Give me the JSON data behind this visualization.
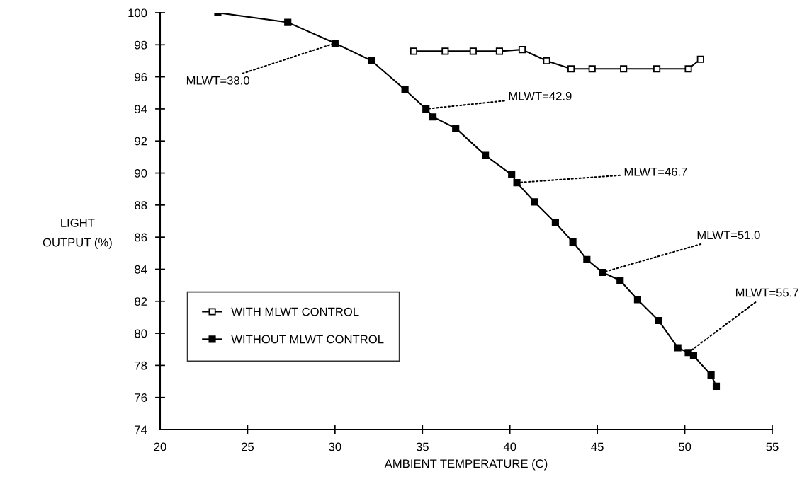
{
  "chart_data": {
    "type": "line",
    "xlabel": "AMBIENT TEMPERATURE (C)",
    "ylabel": "LIGHT\nOUTPUT (%)",
    "xlim": [
      20,
      55
    ],
    "xticks": [
      20,
      25,
      30,
      35,
      40,
      45,
      50,
      55
    ],
    "ylim": [
      74,
      100
    ],
    "yticks": [
      74,
      76,
      78,
      80,
      82,
      84,
      86,
      88,
      90,
      92,
      94,
      96,
      98,
      100
    ],
    "grid": false,
    "legend": "lower left",
    "marker": "square",
    "line_style": "solid",
    "series": [
      {
        "name": "WITH MLWT CONTROL",
        "color": "#000000",
        "x": [
          34.5,
          36.3,
          37.9,
          39.4,
          40.7,
          42.1,
          43.5,
          44.7,
          46.5,
          48.4,
          50.2,
          50.9
        ],
        "values": [
          97.6,
          97.6,
          97.6,
          97.6,
          97.7,
          97.0,
          96.5,
          96.5,
          96.5,
          96.5,
          96.5,
          97.1
        ]
      },
      {
        "name": "WITHOUT MLWT CONTROL",
        "color": "#000000",
        "x": [
          23.3,
          27.3,
          30.0,
          32.1,
          34.0,
          35.2,
          35.6,
          36.9,
          38.6,
          40.1,
          40.4,
          41.4,
          42.6,
          43.6,
          44.4,
          45.3,
          46.3,
          47.3,
          48.5,
          49.6,
          50.2,
          50.5,
          51.5,
          51.8
        ],
        "values": [
          100.0,
          99.4,
          98.1,
          97.0,
          95.2,
          94.0,
          93.5,
          92.8,
          91.1,
          89.9,
          89.4,
          88.2,
          86.9,
          85.7,
          84.6,
          83.8,
          83.3,
          82.1,
          80.8,
          79.1,
          78.8,
          78.6,
          77.4,
          76.7
        ]
      }
    ],
    "annotations": [
      {
        "text": "MLWT=38.0",
        "x": 30.0,
        "y": 98.1
      },
      {
        "text": "MLWT=42.9",
        "x": 35.2,
        "y": 94.0
      },
      {
        "text": "MLWT=46.7",
        "x": 40.4,
        "y": 89.4
      },
      {
        "text": "MLWT=51.0",
        "x": 45.3,
        "y": 83.8
      },
      {
        "text": "MLWT=55.7",
        "x": 50.2,
        "y": 78.8
      }
    ]
  }
}
